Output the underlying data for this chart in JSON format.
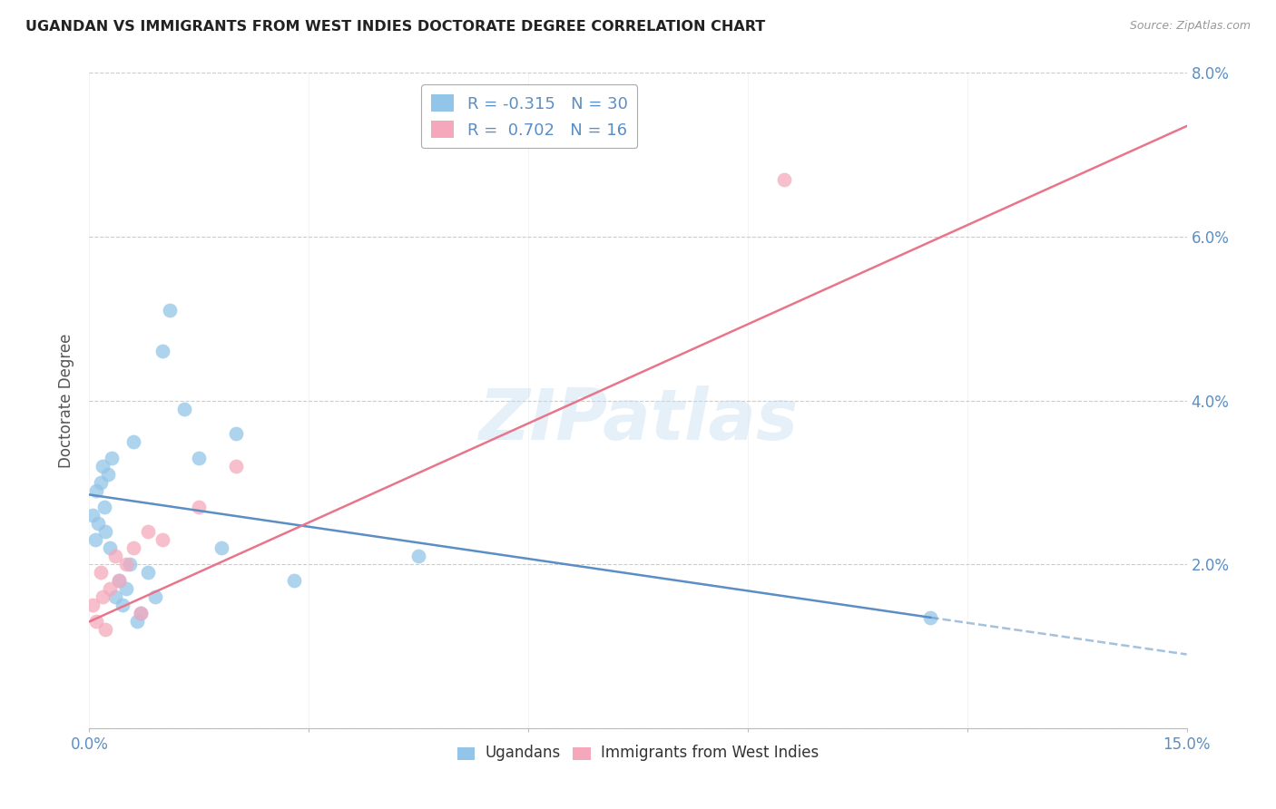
{
  "title": "UGANDAN VS IMMIGRANTS FROM WEST INDIES DOCTORATE DEGREE CORRELATION CHART",
  "source": "Source: ZipAtlas.com",
  "ylabel": "Doctorate Degree",
  "xlim": [
    0.0,
    15.0
  ],
  "ylim": [
    0.0,
    8.0
  ],
  "xticks": [
    0.0,
    3.0,
    6.0,
    9.0,
    12.0,
    15.0
  ],
  "xtick_labels": [
    "0.0%",
    "",
    "",
    "",
    "",
    "15.0%"
  ],
  "yticks": [
    0.0,
    2.0,
    4.0,
    6.0,
    8.0
  ],
  "ytick_labels": [
    "",
    "2.0%",
    "4.0%",
    "6.0%",
    "8.0%"
  ],
  "background_color": "#ffffff",
  "grid_color": "#cccccc",
  "watermark": "ZIPatlas",
  "ugandan_color": "#93c5e8",
  "westindies_color": "#f5a8bc",
  "ugandan_line_color": "#5b8ec4",
  "westindies_line_color": "#e8758a",
  "ugandan_R": -0.315,
  "ugandan_N": 30,
  "westindies_R": 0.702,
  "westindies_N": 16,
  "ugandan_x": [
    0.05,
    0.08,
    0.1,
    0.12,
    0.15,
    0.18,
    0.2,
    0.22,
    0.25,
    0.28,
    0.3,
    0.35,
    0.4,
    0.45,
    0.5,
    0.55,
    0.6,
    0.65,
    0.7,
    0.8,
    0.9,
    1.0,
    1.1,
    1.3,
    1.5,
    1.8,
    2.0,
    2.8,
    4.5,
    11.5
  ],
  "ugandan_y": [
    2.6,
    2.3,
    2.9,
    2.5,
    3.0,
    3.2,
    2.7,
    2.4,
    3.1,
    2.2,
    3.3,
    1.6,
    1.8,
    1.5,
    1.7,
    2.0,
    3.5,
    1.3,
    1.4,
    1.9,
    1.6,
    4.6,
    5.1,
    3.9,
    3.3,
    2.2,
    3.6,
    1.8,
    2.1,
    1.35
  ],
  "westindies_x": [
    0.05,
    0.1,
    0.15,
    0.18,
    0.22,
    0.28,
    0.35,
    0.4,
    0.5,
    0.6,
    0.7,
    0.8,
    1.0,
    1.5,
    2.0,
    9.5
  ],
  "westindies_y": [
    1.5,
    1.3,
    1.9,
    1.6,
    1.2,
    1.7,
    2.1,
    1.8,
    2.0,
    2.2,
    1.4,
    2.4,
    2.3,
    2.7,
    3.2,
    6.7
  ],
  "blue_line_x0": 0.0,
  "blue_line_x1": 11.5,
  "blue_line_y0": 2.85,
  "blue_line_y1": 1.35,
  "blue_dash_x0": 11.5,
  "blue_dash_x1": 15.0,
  "blue_dash_y0": 1.35,
  "blue_dash_y1": 0.9,
  "pink_line_x0": 0.0,
  "pink_line_x1": 15.0,
  "pink_line_y0": 1.3,
  "pink_line_y1": 7.35,
  "legend_R1": "R = -0.315",
  "legend_N1": "N = 30",
  "legend_R2": "R =  0.702",
  "legend_N2": "N = 16",
  "legend_label1": "Ugandans",
  "legend_label2": "Immigrants from West Indies",
  "tick_color": "#5b8ec4",
  "title_color": "#222222",
  "ylabel_color": "#555555",
  "source_color": "#999999"
}
